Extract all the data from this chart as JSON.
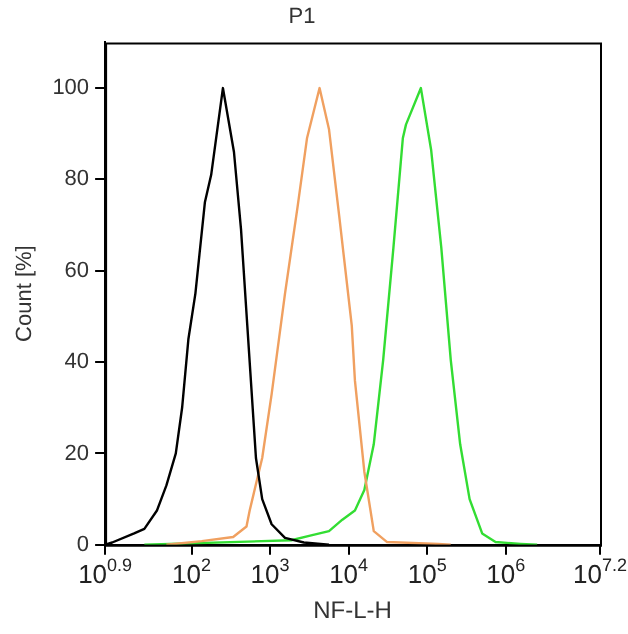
{
  "chart_data": {
    "type": "line",
    "title": "P1",
    "xlabel": "NF-L-H",
    "ylabel": "Count [%]",
    "log": "x",
    "grid": false,
    "legend": false,
    "marker": "none",
    "line_style": "solid",
    "xlim": [
      7.943,
      15848932
    ],
    "xticks": [
      {
        "value": 7.943,
        "label": "10$^{0.9}$"
      },
      {
        "value": 100,
        "label": "10$^{2}$"
      },
      {
        "value": 1000,
        "label": "10$^{3}$"
      },
      {
        "value": 10000,
        "label": "10$^{4}$"
      },
      {
        "value": 100000,
        "label": "10$^{5}$"
      },
      {
        "value": 1000000,
        "label": "10$^{6}$"
      },
      {
        "value": 15848932,
        "label": "10$^{7.2}$"
      }
    ],
    "ylim": [
      0,
      110
    ],
    "yticks": [
      0,
      20,
      40,
      60,
      80,
      100
    ],
    "series": [
      {
        "color": "#000000",
        "x": [
          7.943,
          9.77,
          18.6,
          25.1,
          36.3,
          47.9,
          63.1,
          75.9,
          91.2,
          112,
          148,
          178,
          251,
          347,
          427,
          513,
          661,
          794,
          1047,
          1549,
          2692,
          5623
        ],
        "values": [
          0,
          0.5,
          2.5,
          3.5,
          7.5,
          13,
          20,
          30,
          45,
          55,
          75,
          81,
          100,
          86,
          69,
          48,
          19,
          10,
          4.5,
          1.5,
          0.5,
          0
        ]
      },
      {
        "color": "#f0a060",
        "x": [
          47.9,
          135,
          339,
          501,
          550,
          794,
          1047,
          1549,
          2239,
          2951,
          4266,
          5623,
          7586,
          10965,
          12023,
          15849,
          20893,
          30903,
          138038,
          199526
        ],
        "values": [
          0,
          0.8,
          1.7,
          4,
          7.5,
          19,
          33,
          55,
          74,
          89,
          100,
          91,
          72,
          48,
          36,
          16,
          3,
          0.6,
          0.2,
          0
        ]
      },
      {
        "color": "#33dd33",
        "x": [
          25.1,
          1862,
          3236,
          5623,
          8318,
          12023,
          15849,
          20893,
          27542,
          37154,
          48978,
          53703,
          83176,
          112202,
          151356,
          199526,
          263027,
          346737,
          501187,
          741310,
          1548817,
          2511886
        ],
        "values": [
          0,
          1,
          2,
          3,
          5.5,
          7.5,
          12,
          22,
          40.5,
          65,
          89,
          92,
          100,
          86.5,
          65,
          40.5,
          22,
          10,
          2.5,
          0.6,
          0.2,
          0
        ]
      }
    ]
  }
}
